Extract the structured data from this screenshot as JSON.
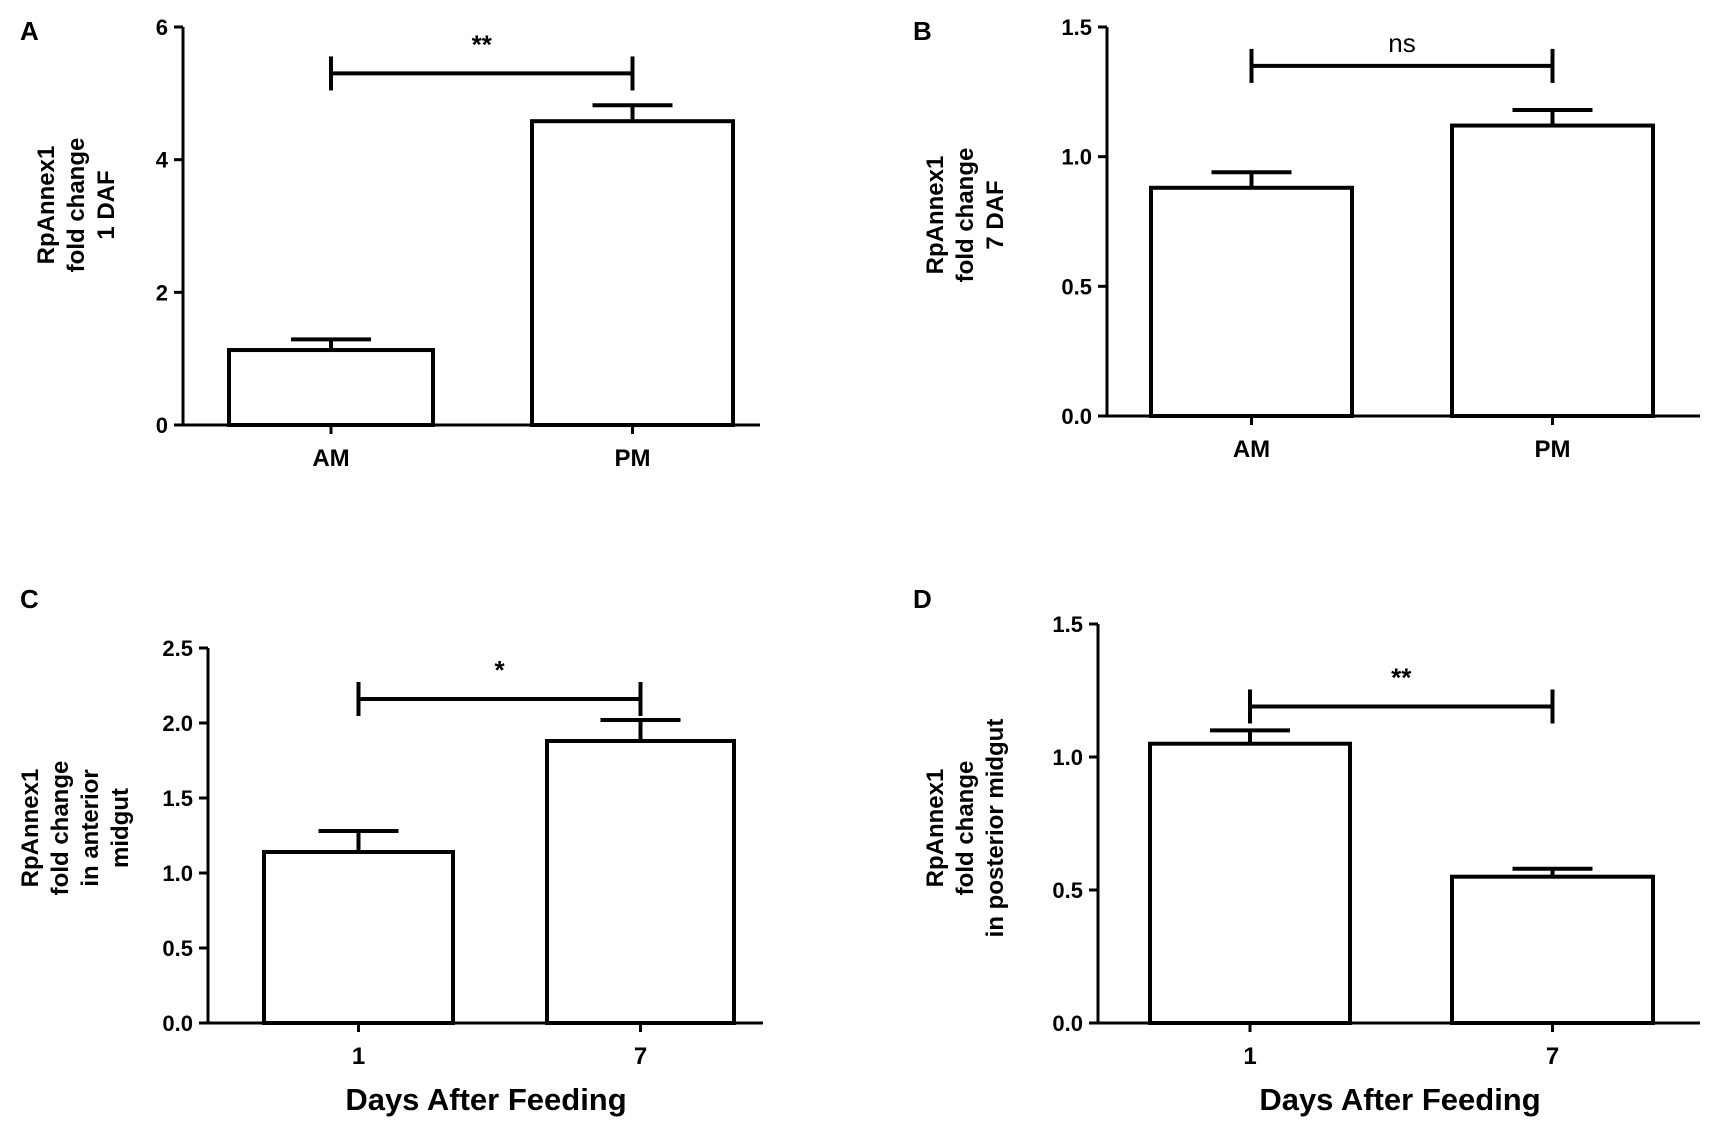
{
  "chart_data": [
    {
      "type": "bar",
      "panel_label": "A",
      "ylabel_lines": [
        "RpAnnex1",
        "fold change",
        "1 DAF"
      ],
      "xlabel": "",
      "categories": [
        "AM",
        "PM"
      ],
      "values": [
        1.13,
        4.58
      ],
      "errors": [
        0.16,
        0.24
      ],
      "ylim": [
        0,
        6
      ],
      "yticks": [
        0,
        2,
        4,
        6
      ],
      "ytick_labels": [
        "0",
        "2",
        "4",
        "6"
      ],
      "significance": {
        "label": "**",
        "bracket_y": 5.3
      }
    },
    {
      "type": "bar",
      "panel_label": "B",
      "ylabel_lines": [
        "RpAnnex1",
        "fold change",
        "7 DAF"
      ],
      "xlabel": "",
      "categories": [
        "AM",
        "PM"
      ],
      "values": [
        0.88,
        1.12
      ],
      "errors": [
        0.06,
        0.06
      ],
      "ylim": [
        0,
        1.5
      ],
      "yticks": [
        0,
        0.5,
        1.0,
        1.5
      ],
      "ytick_labels": [
        "0.0",
        "0.5",
        "1.0",
        "1.5"
      ],
      "significance": {
        "label": "ns",
        "bracket_y": 1.35
      }
    },
    {
      "type": "bar",
      "panel_label": "C",
      "ylabel_lines": [
        "RpAnnex1",
        "fold change",
        "in anterior",
        "midgut"
      ],
      "xlabel": "Days After Feeding",
      "categories": [
        "1",
        "7"
      ],
      "values": [
        1.14,
        1.88
      ],
      "errors": [
        0.14,
        0.14
      ],
      "ylim": [
        0,
        2.5
      ],
      "yticks": [
        0,
        0.5,
        1.0,
        1.5,
        2.0,
        2.5
      ],
      "ytick_labels": [
        "0.0",
        "0.5",
        "1.0",
        "1.5",
        "2.0",
        "2.5"
      ],
      "significance": {
        "label": "*",
        "bracket_y": 2.16
      }
    },
    {
      "type": "bar",
      "panel_label": "D",
      "ylabel_lines": [
        "RpAnnex1",
        "fold change",
        "in posterior midgut"
      ],
      "xlabel": "Days After Feeding",
      "categories": [
        "1",
        "7"
      ],
      "values": [
        1.05,
        0.55
      ],
      "errors": [
        0.05,
        0.03
      ],
      "ylim": [
        0,
        1.5
      ],
      "yticks": [
        0,
        0.5,
        1.0,
        1.5
      ],
      "ytick_labels": [
        "0.0",
        "0.5",
        "1.0",
        "1.5"
      ],
      "significance": {
        "label": "**",
        "bracket_y": 1.19
      }
    }
  ]
}
